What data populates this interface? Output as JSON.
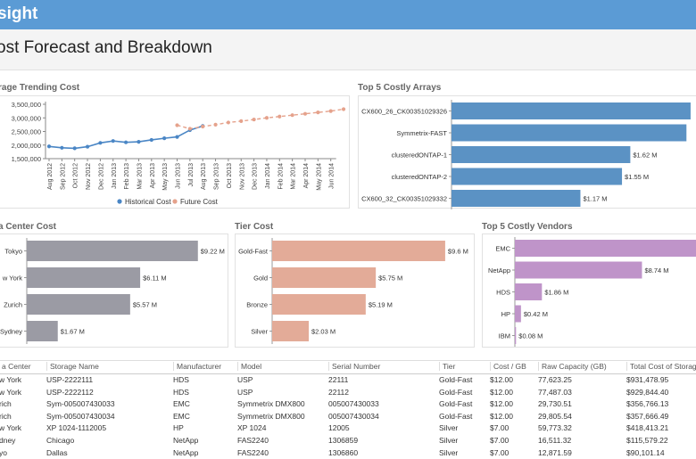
{
  "app": {
    "title_fragment": "sight"
  },
  "page": {
    "title": "ost Forecast and Breakdown"
  },
  "trend": {
    "title": "rage Trending Cost",
    "y_ticks": [
      "3,500,000",
      "3,000,000",
      "2,500,000",
      "2,000,000",
      "1,500,000"
    ],
    "x_labels": [
      "Aug 2012",
      "Sep 2012",
      "Oct 2012",
      "Nov 2012",
      "Dec 2012",
      "Jan 2013",
      "Feb 2013",
      "Mar 2013",
      "Apr 2013",
      "May 2013",
      "Jun 2013",
      "Jul 2013",
      "Aug 2013",
      "Sep 2013",
      "Oct 2013",
      "Nov 2013",
      "Dec 2013",
      "Jan 2014",
      "Feb 2014",
      "Mar 2014",
      "Apr 2014",
      "May 2014",
      "Jun 2014"
    ],
    "legend": {
      "historical": "Historical Cost",
      "future": "Future Cost"
    },
    "colors": {
      "historical": "#4a86c5",
      "future": "#e5a28c"
    }
  },
  "arrays": {
    "title": "Top 5 Costly Arrays",
    "color": "#5b92c4",
    "items": [
      {
        "name": "CX600_26_CK00351029326",
        "label": "",
        "value": 11.5
      },
      {
        "name": "Symmetrix-FAST",
        "label": "",
        "value": 11.3
      },
      {
        "name": "clusteredONTAP-1",
        "label": "$1.62 M",
        "value": 8.6
      },
      {
        "name": "clusteredONTAP-2",
        "label": "$1.55 M",
        "value": 8.2
      },
      {
        "name": "CX600_32_CK00351029332",
        "label": "$1.17 M",
        "value": 6.2
      }
    ]
  },
  "datacenter": {
    "title": "a Center Cost",
    "color": "#9b9ba4",
    "items": [
      {
        "name": "Tokyo",
        "label": "$9.22 M",
        "value": 9.22
      },
      {
        "name": "w York",
        "label": "$6.11 M",
        "value": 6.11
      },
      {
        "name": "Zurich",
        "label": "$5.57 M",
        "value": 5.57
      },
      {
        "name": "Sydney",
        "label": "$1.67 M",
        "value": 1.67
      }
    ]
  },
  "tier": {
    "title": "Tier Cost",
    "color": "#e3ab98",
    "items": [
      {
        "name": "Gold-Fast",
        "label": "$9.6 M",
        "value": 9.6
      },
      {
        "name": "Gold",
        "label": "$5.75 M",
        "value": 5.75
      },
      {
        "name": "Bronze",
        "label": "$5.19 M",
        "value": 5.19
      },
      {
        "name": "Silver",
        "label": "$2.03 M",
        "value": 2.03
      }
    ]
  },
  "vendors": {
    "title": "Top 5 Costly Vendors",
    "color": "#bf94c9",
    "items": [
      {
        "name": "EMC",
        "label": "$",
        "value": 12.5
      },
      {
        "name": "NetApp",
        "label": "$8.74 M",
        "value": 8.74
      },
      {
        "name": "HDS",
        "label": "$1.86 M",
        "value": 1.86
      },
      {
        "name": "HP",
        "label": "$0.42 M",
        "value": 0.42
      },
      {
        "name": "IBM",
        "label": "$0.08 M",
        "value": 0.08
      }
    ]
  },
  "table": {
    "columns": [
      "a Center",
      "Storage Name",
      "Manufacturer",
      "Model",
      "Serial Number",
      "Tier",
      "Cost / GB",
      "Raw Capacity (GB)",
      "Total Cost of Storage"
    ],
    "rows": [
      [
        "w York",
        "USP-2222111",
        "HDS",
        "USP",
        "22111",
        "Gold-Fast",
        "$12.00",
        "77,623.25",
        "$931,478.95"
      ],
      [
        "w York",
        "USP-2222112",
        "HDS",
        "USP",
        "22112",
        "Gold-Fast",
        "$12.00",
        "77,487.03",
        "$929,844.40"
      ],
      [
        "rich",
        "Sym-005007430033",
        "EMC",
        "Symmetrix DMX800",
        "005007430033",
        "Gold-Fast",
        "$12.00",
        "29,730.51",
        "$356,766.13"
      ],
      [
        "rich",
        "Sym-005007430034",
        "EMC",
        "Symmetrix DMX800",
        "005007430034",
        "Gold-Fast",
        "$12.00",
        "29,805.54",
        "$357,666.49"
      ],
      [
        "w York",
        "XP 1024-1112005",
        "HP",
        "XP 1024",
        "12005",
        "Silver",
        "$7.00",
        "59,773.32",
        "$418,413.21"
      ],
      [
        "dney",
        "Chicago",
        "NetApp",
        "FAS2240",
        "1306859",
        "Silver",
        "$7.00",
        "16,511.32",
        "$115,579.22"
      ],
      [
        "yo",
        "Dallas",
        "NetApp",
        "FAS2240",
        "1306860",
        "Silver",
        "$7.00",
        "12,871.59",
        "$90,101.14"
      ]
    ]
  }
}
